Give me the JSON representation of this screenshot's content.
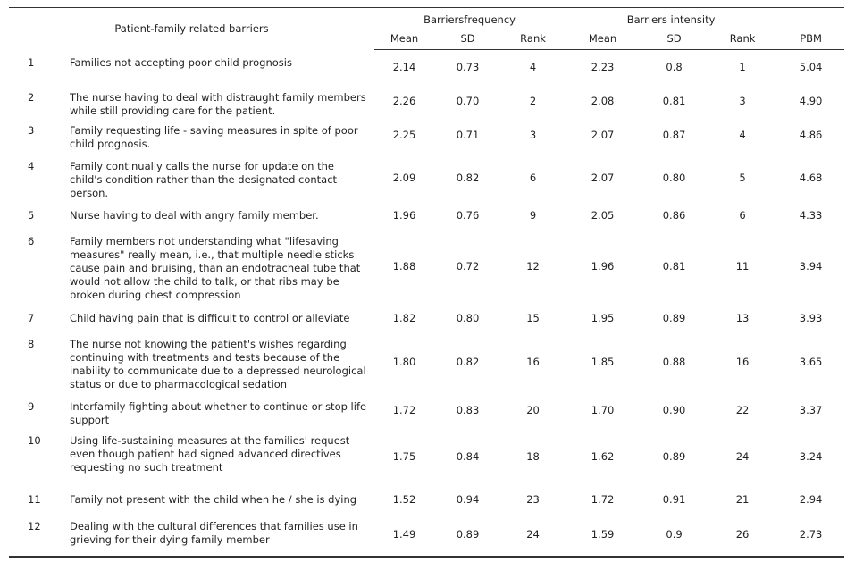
{
  "table": {
    "headers": {
      "barrier_col": "Patient-family related barriers",
      "group_frequency": "Barriersfrequency",
      "group_intensity": "Barriers intensity",
      "freq_mean": "Mean",
      "freq_sd": "SD",
      "freq_rank": "Rank",
      "int_mean": "Mean",
      "int_sd": "SD",
      "int_rank": "Rank",
      "pbm": "PBM"
    },
    "rows": [
      {
        "num": "1",
        "desc": "Families not accepting poor child prognosis",
        "f_mean": "2.14",
        "f_sd": "0.73",
        "f_rank": "4",
        "i_mean": "2.23",
        "i_sd": "0.8",
        "i_rank": "1",
        "pbm": "5.04"
      },
      {
        "num": "2",
        "desc": "The nurse having to deal with distraught family members while still providing care for the patient.",
        "f_mean": "2.26",
        "f_sd": "0.70",
        "f_rank": "2",
        "i_mean": "2.08",
        "i_sd": "0.81",
        "i_rank": "3",
        "pbm": "4.90"
      },
      {
        "num": "3",
        "desc": "Family requesting life - saving measures in spite of poor child prognosis.",
        "f_mean": "2.25",
        "f_sd": "0.71",
        "f_rank": "3",
        "i_mean": "2.07",
        "i_sd": "0.87",
        "i_rank": "4",
        "pbm": "4.86"
      },
      {
        "num": "4",
        "desc": "Family continually calls the nurse for update on the child's condition rather than the designated contact person.",
        "f_mean": "2.09",
        "f_sd": "0.82",
        "f_rank": "6",
        "i_mean": "2.07",
        "i_sd": "0.80",
        "i_rank": "5",
        "pbm": "4.68"
      },
      {
        "num": "5",
        "desc": "Nurse having to deal with angry family member.",
        "f_mean": "1.96",
        "f_sd": "0.76",
        "f_rank": "9",
        "i_mean": "2.05",
        "i_sd": "0.86",
        "i_rank": "6",
        "pbm": "4.33"
      },
      {
        "num": "6",
        "desc": "Family members not understanding what \"lifesaving measures\" really mean, i.e., that multiple needle sticks cause pain and bruising, than an endotracheal tube that would not allow the child to talk, or that ribs may be broken during chest compression",
        "f_mean": "1.88",
        "f_sd": "0.72",
        "f_rank": "12",
        "i_mean": "1.96",
        "i_sd": "0.81",
        "i_rank": "11",
        "pbm": "3.94"
      },
      {
        "num": "7",
        "desc": "Child having pain that is difficult to control or alleviate",
        "f_mean": "1.82",
        "f_sd": "0.80",
        "f_rank": "15",
        "i_mean": "1.95",
        "i_sd": "0.89",
        "i_rank": "13",
        "pbm": "3.93"
      },
      {
        "num": "8",
        "desc": "The nurse not knowing the patient's wishes regarding continuing with treatments and tests because of the inability to communicate due to a depressed neurological status or due to pharmacological sedation",
        "f_mean": "1.80",
        "f_sd": "0.82",
        "f_rank": "16",
        "i_mean": "1.85",
        "i_sd": "0.88",
        "i_rank": "16",
        "pbm": "3.65"
      },
      {
        "num": "9",
        "desc": "Interfamily fighting about whether to continue or stop life support",
        "f_mean": "1.72",
        "f_sd": "0.83",
        "f_rank": "20",
        "i_mean": "1.70",
        "i_sd": "0.90",
        "i_rank": "22",
        "pbm": "3.37"
      },
      {
        "num": "10",
        "desc": "Using life-sustaining measures at the families' request even though patient had signed advanced directives requesting no such treatment",
        "f_mean": "1.75",
        "f_sd": "0.84",
        "f_rank": "18",
        "i_mean": "1.62",
        "i_sd": "0.89",
        "i_rank": "24",
        "pbm": "3.24"
      },
      {
        "num": "11",
        "desc": "Family not present with the child when he / she is dying",
        "f_mean": "1.52",
        "f_sd": "0.94",
        "f_rank": "23",
        "i_mean": "1.72",
        "i_sd": "0.91",
        "i_rank": "21",
        "pbm": "2.94"
      },
      {
        "num": "12",
        "desc": "Dealing with the cultural differences that families use in grieving for their dying family member",
        "f_mean": "1.49",
        "f_sd": "0.89",
        "f_rank": "24",
        "i_mean": "1.59",
        "i_sd": "0.9",
        "i_rank": "26",
        "pbm": "2.73"
      }
    ]
  }
}
